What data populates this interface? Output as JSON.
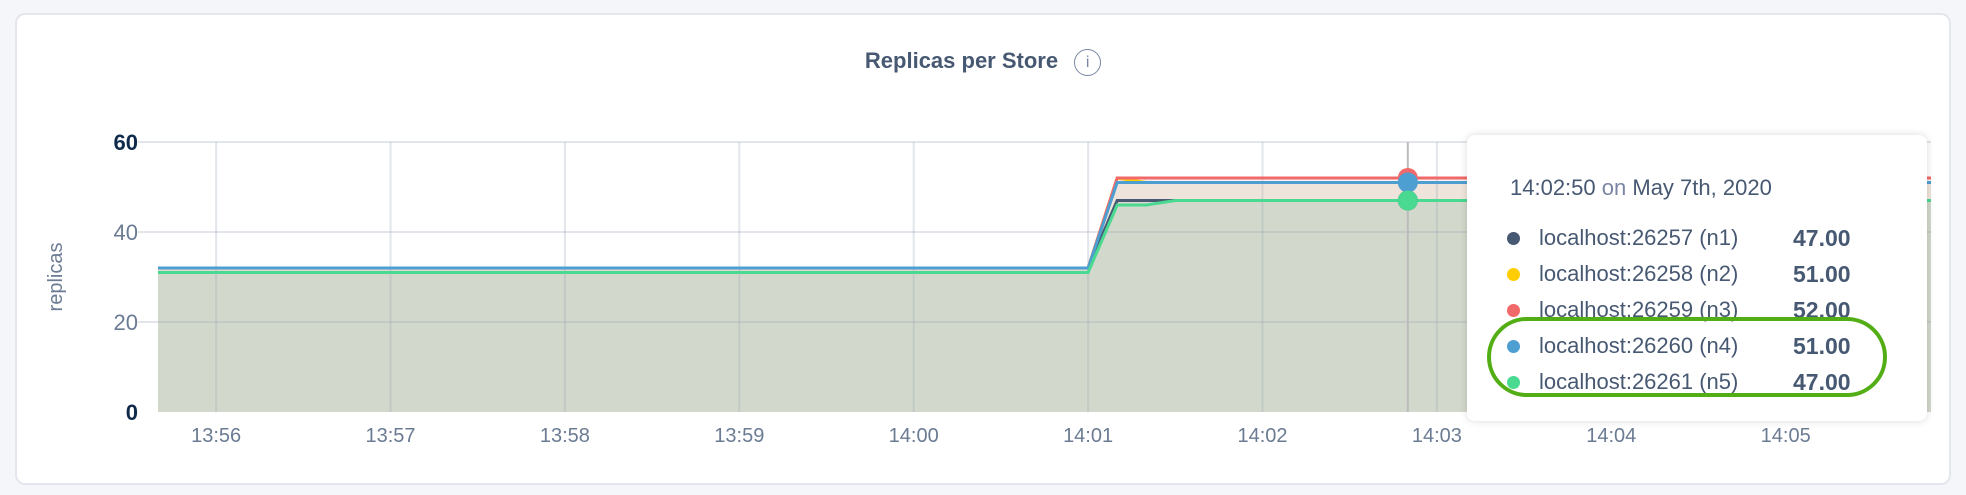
{
  "chart_data": {
    "type": "area",
    "title": "Replicas per Store",
    "ylabel": "replicas",
    "ylim": [
      0,
      60
    ],
    "yticks": [
      "0",
      "20",
      "40",
      "60"
    ],
    "xlim": [
      "13:55:40",
      "14:05:50"
    ],
    "xticks": [
      "13:56",
      "13:57",
      "13:58",
      "13:59",
      "14:00",
      "14:01",
      "14:02",
      "14:03",
      "14:04",
      "14:05"
    ],
    "grid": true,
    "series": [
      {
        "name": "localhost:26257 (n1)",
        "color": "#475872",
        "points": [
          [
            "13:55:40",
            32
          ],
          [
            "14:01:00",
            32
          ],
          [
            "14:01:10",
            47
          ],
          [
            "14:05:50",
            47
          ]
        ]
      },
      {
        "name": "localhost:26258 (n2)",
        "color": "#ffcd02",
        "points": [
          [
            "13:55:40",
            32
          ],
          [
            "14:01:00",
            32
          ],
          [
            "14:01:10",
            52
          ],
          [
            "14:01:20",
            51
          ],
          [
            "14:05:50",
            51
          ]
        ]
      },
      {
        "name": "localhost:26259 (n3)",
        "color": "#f16969",
        "points": [
          [
            "13:55:40",
            32
          ],
          [
            "14:01:00",
            32
          ],
          [
            "14:01:10",
            52
          ],
          [
            "14:05:50",
            52
          ]
        ]
      },
      {
        "name": "localhost:26260 (n4)",
        "color": "#4e9fd1",
        "points": [
          [
            "13:55:40",
            32
          ],
          [
            "14:01:00",
            32
          ],
          [
            "14:01:10",
            51
          ],
          [
            "14:05:50",
            51
          ]
        ]
      },
      {
        "name": "localhost:26261 (n5)",
        "color": "#49d990",
        "points": [
          [
            "13:55:40",
            31
          ],
          [
            "14:01:00",
            31
          ],
          [
            "14:01:10",
            46
          ],
          [
            "14:01:20",
            46
          ],
          [
            "14:01:30",
            47
          ],
          [
            "14:05:50",
            47
          ]
        ]
      }
    ],
    "hover": {
      "time": "14:02:50"
    }
  },
  "tooltip": {
    "time": "14:02:50",
    "on": "on",
    "date": "May 7th, 2020",
    "rows": [
      {
        "label": "localhost:26257 (n1)",
        "value": "47.00",
        "color": "#475872"
      },
      {
        "label": "localhost:26258 (n2)",
        "value": "51.00",
        "color": "#ffcd02"
      },
      {
        "label": "localhost:26259 (n3)",
        "value": "52.00",
        "color": "#f16969"
      },
      {
        "label": "localhost:26260 (n4)",
        "value": "51.00",
        "color": "#4e9fd1"
      },
      {
        "label": "localhost:26261 (n5)",
        "value": "47.00",
        "color": "#49d990"
      }
    ]
  },
  "highlight_color": "#52ae14",
  "info_icon": "i"
}
